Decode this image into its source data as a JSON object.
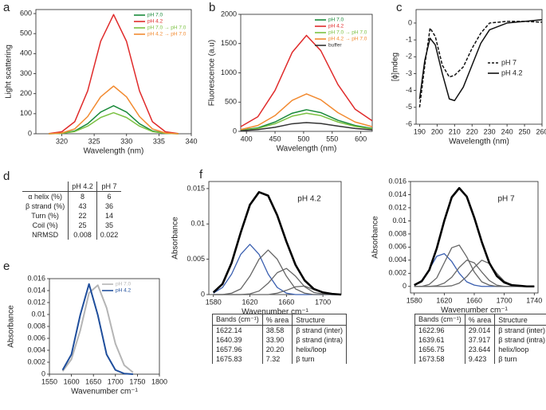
{
  "chart_data": [
    {
      "type": "line",
      "panel_label": "a",
      "xlabel": "Wavelength (nm)",
      "ylabel": "Light scattering",
      "x": [
        318,
        320,
        322,
        324,
        326,
        328,
        330,
        332,
        334,
        336,
        338
      ],
      "xlim": [
        316,
        340
      ],
      "xticks": [
        320,
        325,
        330,
        335,
        340
      ],
      "ylim": [
        0,
        620
      ],
      "yticks": [
        0,
        100,
        200,
        300,
        400,
        500,
        600
      ],
      "legend": "upper right",
      "series": [
        {
          "name": "pH 7.0",
          "color": "#1a8a3a",
          "values": [
            0,
            2,
            14,
            50,
            108,
            140,
            108,
            50,
            14,
            2,
            0
          ]
        },
        {
          "name": "pH 4.2",
          "color": "#e02b2b",
          "values": [
            1,
            10,
            60,
            214,
            461,
            595,
            461,
            214,
            60,
            10,
            1
          ]
        },
        {
          "name": "pH 7.0 → pH 7.0",
          "color": "#7bc142",
          "values": [
            0,
            2,
            11,
            38,
            81,
            105,
            81,
            38,
            11,
            2,
            0
          ]
        },
        {
          "name": "pH 4.2 → pH 7.0",
          "color": "#f28a30",
          "values": [
            0,
            4,
            24,
            86,
            184,
            238,
            184,
            86,
            24,
            4,
            0
          ]
        }
      ]
    },
    {
      "type": "line",
      "panel_label": "b",
      "xlabel": "Wavelength (nm)",
      "ylabel": "Fluorescence (a.u)",
      "x": [
        390,
        420,
        450,
        480,
        505,
        530,
        560,
        590,
        620
      ],
      "xlim": [
        390,
        620
      ],
      "xticks": [
        400,
        450,
        500,
        550,
        600
      ],
      "ylim": [
        0,
        2000
      ],
      "yticks": [
        0,
        500,
        1000,
        1500,
        2000
      ],
      "legend": "upper right",
      "series": [
        {
          "name": "pH 7.0",
          "color": "#1a8a3a",
          "values": [
            20,
            60,
            160,
            310,
            370,
            320,
            190,
            100,
            50
          ]
        },
        {
          "name": "pH 4.2",
          "color": "#e02b2b",
          "values": [
            80,
            250,
            700,
            1350,
            1640,
            1380,
            800,
            380,
            180
          ]
        },
        {
          "name": "pH 7.0 → pH 7.0",
          "color": "#7bc142",
          "values": [
            15,
            50,
            130,
            260,
            310,
            270,
            160,
            85,
            40
          ]
        },
        {
          "name": "pH 4.2 → pH 7.0",
          "color": "#f28a30",
          "values": [
            30,
            100,
            270,
            530,
            640,
            540,
            320,
            160,
            80
          ]
        },
        {
          "name": "buffer",
          "color": "#333333",
          "values": [
            10,
            30,
            70,
            130,
            150,
            135,
            90,
            50,
            25
          ]
        }
      ]
    },
    {
      "type": "line",
      "panel_label": "c",
      "xlabel": "Wavelength (nm)",
      "ylabel": "[ϕ]mdeg",
      "x": [
        190,
        193,
        196,
        199,
        203,
        207,
        210,
        215,
        220,
        225,
        230,
        240,
        250,
        260
      ],
      "xlim": [
        188,
        260
      ],
      "xticks": [
        190,
        200,
        210,
        220,
        230,
        240,
        250,
        260
      ],
      "ylim": [
        -6,
        0.8
      ],
      "yticks": [
        0,
        -1,
        -2,
        -3,
        -4,
        -5,
        -6
      ],
      "legend": "center right",
      "series": [
        {
          "name": "pH 7",
          "color": "#111111",
          "dash": true,
          "values": [
            -5,
            -2.5,
            -0.3,
            -0.8,
            -2.5,
            -3.2,
            -3.1,
            -2.6,
            -1.5,
            -0.6,
            0,
            0.1,
            0.1,
            0.05
          ]
        },
        {
          "name": "pH 4.2",
          "color": "#111111",
          "values": [
            -4.5,
            -2.2,
            -0.9,
            -1.3,
            -3,
            -4.5,
            -4.6,
            -3.8,
            -2.5,
            -1.2,
            -0.4,
            0,
            0.1,
            0.2
          ]
        }
      ]
    },
    {
      "type": "line",
      "panel_label": "e",
      "xlabel": "Wavenumber cm⁻¹",
      "ylabel": "Absorbance",
      "x": [
        1580,
        1600,
        1620,
        1640,
        1660,
        1680,
        1700,
        1720,
        1740
      ],
      "xlim": [
        1550,
        1800
      ],
      "xticks": [
        1550,
        1600,
        1650,
        1700,
        1750,
        1800
      ],
      "ylim": [
        0,
        0.016
      ],
      "yticks": [
        0,
        0.002,
        0.004,
        0.006,
        0.008,
        0.01,
        0.012,
        0.014,
        0.016
      ],
      "legend": "upper right",
      "series": [
        {
          "name": "pH 7.0",
          "color": "#b5b5b5",
          "width": 2,
          "values": [
            0.0005,
            0.0025,
            0.0073,
            0.0136,
            0.0149,
            0.0111,
            0.0051,
            0.0015,
            0.0003
          ]
        },
        {
          "name": "pH 4.2",
          "color": "#1f4e9c",
          "width": 2,
          "values": [
            0.0007,
            0.0033,
            0.0099,
            0.0151,
            0.0099,
            0.0033,
            0.0007,
            0.0001,
            0
          ]
        }
      ]
    },
    {
      "type": "line",
      "panel_label": "f",
      "xlabel": "Wavenumber cm⁻¹",
      "ylabel": "Absorbance",
      "annotation": "pH 4.2",
      "x": [
        1580,
        1590,
        1600,
        1610,
        1620,
        1630,
        1640,
        1650,
        1660,
        1670,
        1680,
        1690,
        1700,
        1710,
        1720
      ],
      "xlim": [
        1575,
        1720
      ],
      "xticks": [
        1580,
        1620,
        1660,
        1700
      ],
      "ylim": [
        0,
        0.016
      ],
      "yticks": [
        0,
        0.005,
        0.01,
        0.015
      ],
      "series": [
        {
          "color": "#3a5fb0",
          "width": 1.3,
          "values": [
            0.0002,
            0.001,
            0.0029,
            0.0057,
            0.0071,
            0.0057,
            0.0029,
            0.001,
            0.0002,
            0,
            0,
            0,
            0,
            0,
            0
          ]
        },
        {
          "color": "#666666",
          "width": 1.3,
          "values": [
            0,
            0,
            0.0002,
            0.0008,
            0.0026,
            0.005,
            0.0063,
            0.005,
            0.0026,
            0.0008,
            0.0002,
            0,
            0,
            0,
            0
          ]
        },
        {
          "color": "#666666",
          "width": 1.3,
          "values": [
            0,
            0,
            0,
            0,
            0.0001,
            0.0005,
            0.0016,
            0.0031,
            0.0037,
            0.0026,
            0.0011,
            0.0003,
            0.0001,
            0,
            0
          ]
        },
        {
          "color": "#666666",
          "width": 1.3,
          "values": [
            0,
            0,
            0,
            0,
            0,
            0,
            0,
            0.0002,
            0.0006,
            0.0011,
            0.0012,
            0.0007,
            0.0003,
            0.0001,
            0
          ]
        },
        {
          "color": "#000000",
          "width": 2.6,
          "values": [
            0.0003,
            0.0015,
            0.0045,
            0.0088,
            0.0127,
            0.0145,
            0.014,
            0.0112,
            0.0075,
            0.0042,
            0.002,
            0.0008,
            0.0003,
            0.0001,
            0
          ]
        }
      ]
    },
    {
      "type": "line",
      "xlabel": "Wavenumber cm⁻¹",
      "ylabel": "Absorbance",
      "annotation": "pH 7",
      "x": [
        1580,
        1590,
        1600,
        1610,
        1620,
        1630,
        1640,
        1650,
        1660,
        1670,
        1680,
        1690,
        1700,
        1710,
        1720,
        1730,
        1740
      ],
      "xlim": [
        1575,
        1745
      ],
      "xticks": [
        1580,
        1620,
        1660,
        1700,
        1740
      ],
      "ylim": [
        -0.001,
        0.016
      ],
      "yticks": [
        0,
        0.002,
        0.004,
        0.006,
        0.008,
        0.01,
        0.012,
        0.014,
        0.016
      ],
      "series": [
        {
          "color": "#3a5fb0",
          "width": 1.3,
          "values": [
            0.0002,
            0.0009,
            0.0026,
            0.0046,
            0.005,
            0.0038,
            0.002,
            0.0007,
            0.0002,
            0,
            0,
            0,
            0,
            0,
            0,
            0,
            0
          ]
        },
        {
          "color": "#666666",
          "width": 1.3,
          "values": [
            0,
            0,
            0.0003,
            0.0013,
            0.0036,
            0.0059,
            0.0063,
            0.0045,
            0.0022,
            0.0007,
            0.0002,
            0,
            0,
            0,
            0,
            0,
            0
          ]
        },
        {
          "color": "#666666",
          "width": 1.3,
          "values": [
            0,
            0,
            0,
            0.0001,
            0.0005,
            0.0014,
            0.0029,
            0.004,
            0.0036,
            0.0022,
            0.0009,
            0.0002,
            0,
            0,
            0,
            0,
            0
          ]
        },
        {
          "color": "#666666",
          "width": 1.3,
          "values": [
            0,
            0,
            0,
            0,
            0,
            0.0001,
            0.0005,
            0.0015,
            0.0029,
            0.004,
            0.0035,
            0.002,
            0.0008,
            0.0002,
            0,
            0,
            0
          ]
        },
        {
          "color": "#000000",
          "width": 2.6,
          "values": [
            0.0002,
            0.0008,
            0.0025,
            0.0058,
            0.01,
            0.0136,
            0.015,
            0.0137,
            0.0105,
            0.0068,
            0.0036,
            0.0016,
            0.0006,
            0.0002,
            0.0001,
            0,
            0
          ]
        }
      ]
    }
  ],
  "table_d": {
    "panel_label": "d",
    "columns": [
      "pH 4.2",
      "pH 7"
    ],
    "rows": [
      {
        "label": "α helix (%)",
        "values": [
          8,
          6
        ]
      },
      {
        "label": "β strand (%)",
        "values": [
          43,
          36
        ]
      },
      {
        "label": "Turn (%)",
        "values": [
          22,
          14
        ]
      },
      {
        "label": "Coil (%)",
        "values": [
          25,
          35
        ]
      },
      {
        "label": "NRMSD",
        "values": [
          0.008,
          0.022
        ]
      }
    ]
  },
  "tables_f": [
    {
      "columns": [
        "Bands (cm⁻¹)",
        "% area",
        "Structure"
      ],
      "rows": [
        [
          "1622.14",
          "38.58",
          "β strand (inter)"
        ],
        [
          "1640.39",
          "33.90",
          "β strand (intra)"
        ],
        [
          "1657.96",
          "20.20",
          "helix/loop"
        ],
        [
          "1675.83",
          "7.32",
          "β turn"
        ]
      ]
    },
    {
      "columns": [
        "Bands (cm⁻¹)",
        "% area",
        "Structure"
      ],
      "rows": [
        [
          "1622.96",
          "29.014",
          "β strand (inter)"
        ],
        [
          "1639.61",
          "37.917",
          "β strand (intra)"
        ],
        [
          "1656.75",
          "23.644",
          "helix/loop"
        ],
        [
          "1673.58",
          "9.423",
          "β turn"
        ]
      ]
    }
  ]
}
